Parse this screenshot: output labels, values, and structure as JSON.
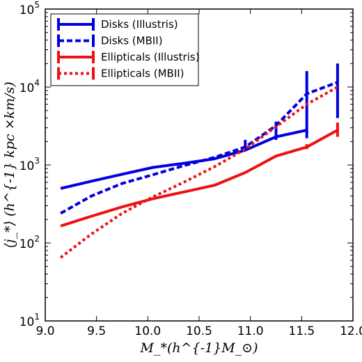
{
  "chart_data": {
    "type": "line",
    "xlabel": "M_*(h^{-1}M_⊙)",
    "ylabel": "⟨j_*⟩ (h^{-1} kpc ×km/s)",
    "xlim": [
      9.0,
      12.0
    ],
    "ylim": [
      10,
      100000
    ],
    "yscale": "log",
    "grid": false,
    "legend_position": "top-left",
    "x_ticks": [
      "9.0",
      "9.5",
      "10.0",
      "10.5",
      "11.0",
      "11.5",
      "12.0"
    ],
    "y_ticks": [
      {
        "base": "10",
        "exp": "1"
      },
      {
        "base": "10",
        "exp": "2"
      },
      {
        "base": "10",
        "exp": "3"
      },
      {
        "base": "10",
        "exp": "4"
      },
      {
        "base": "10",
        "exp": "5"
      }
    ],
    "series": [
      {
        "name": "Disks (Illustris)",
        "color": "#0000dd",
        "style": "solid",
        "x": [
          9.15,
          9.45,
          9.75,
          10.05,
          10.35,
          10.65,
          10.95,
          11.25,
          11.55
        ],
        "y": [
          500,
          620,
          760,
          930,
          1050,
          1200,
          1550,
          2300,
          2800
        ],
        "errors": [
          {
            "x": 11.55,
            "low": 2200,
            "high": 16000
          },
          {
            "x": 11.25,
            "low": 2100,
            "high": 2600
          }
        ]
      },
      {
        "name": "Disks (MBII)",
        "color": "#0000dd",
        "style": "dashed",
        "x": [
          9.15,
          9.45,
          9.75,
          10.05,
          10.35,
          10.65,
          10.95,
          11.25,
          11.55,
          11.85
        ],
        "y": [
          240,
          400,
          580,
          750,
          980,
          1250,
          1700,
          3200,
          8200,
          11500
        ],
        "errors": [
          {
            "x": 10.95,
            "low": 1500,
            "high": 2100
          },
          {
            "x": 11.25,
            "low": 2600,
            "high": 3600
          },
          {
            "x": 11.85,
            "low": 4000,
            "high": 20000
          }
        ]
      },
      {
        "name": "Ellipticals (Illustris)",
        "color": "#ee1111",
        "style": "solid",
        "x": [
          9.15,
          9.45,
          9.75,
          10.05,
          10.35,
          10.65,
          10.95,
          11.25,
          11.55,
          11.85
        ],
        "y": [
          165,
          220,
          290,
          370,
          450,
          550,
          800,
          1300,
          1700,
          2800
        ],
        "errors": [
          {
            "x": 11.85,
            "low": 2300,
            "high": 3500
          },
          {
            "x": 11.55,
            "low": 1600,
            "high": 1850
          }
        ]
      },
      {
        "name": "Ellipticals (MBII)",
        "color": "#ee1111",
        "style": "dotted",
        "x": [
          9.15,
          9.45,
          9.75,
          10.05,
          10.35,
          10.65,
          10.95,
          11.25,
          11.55,
          11.85
        ],
        "y": [
          65,
          130,
          240,
          390,
          600,
          950,
          1600,
          3100,
          6000,
          10000
        ],
        "errors": []
      }
    ]
  }
}
